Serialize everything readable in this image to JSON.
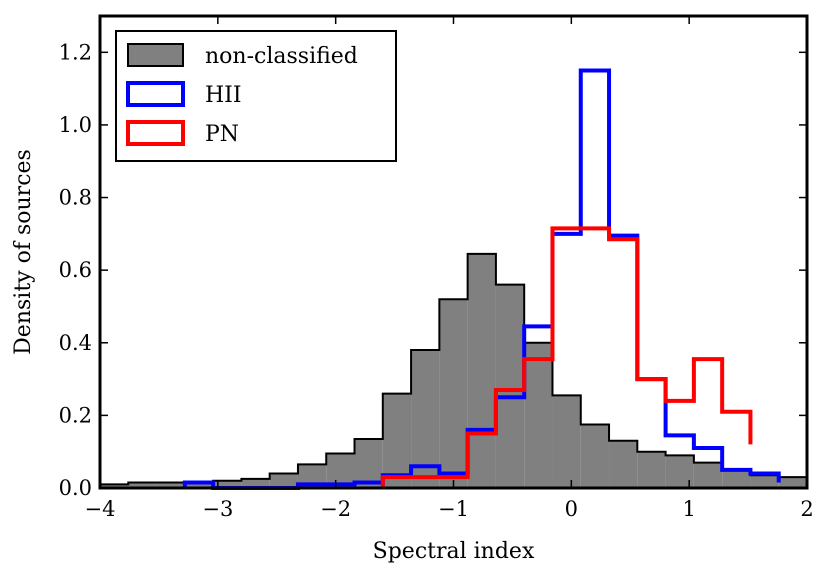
{
  "chart_data": {
    "type": "histogram",
    "xlabel": "Spectral index",
    "ylabel": "Density of sources",
    "xlim": [
      -4,
      2
    ],
    "ylim": [
      0,
      1.3
    ],
    "xticks": [
      -4,
      -3,
      -2,
      -1,
      0,
      1,
      2
    ],
    "xtick_labels": [
      "−4",
      "−3",
      "−2",
      "−1",
      "0",
      "1",
      "2"
    ],
    "yticks": [
      0.0,
      0.2,
      0.4,
      0.6,
      0.8,
      1.0,
      1.2
    ],
    "ytick_labels": [
      "0.0",
      "0.2",
      "0.4",
      "0.6",
      "0.8",
      "1.0",
      "1.2"
    ],
    "legend_position": "top-left",
    "series": [
      {
        "name": "non-classified",
        "style": "filled",
        "fill": "#808080",
        "edge": "#000000",
        "bin_edges": [
          -4.0,
          -3.76,
          -3.52,
          -3.28,
          -3.04,
          -2.8,
          -2.56,
          -2.32,
          -2.08,
          -1.84,
          -1.6,
          -1.36,
          -1.12,
          -0.88,
          -0.64,
          -0.4,
          -0.16,
          0.08,
          0.32,
          0.56,
          0.8,
          1.04,
          1.28,
          1.52,
          1.76,
          2.0
        ],
        "values": [
          0.01,
          0.015,
          0.015,
          0.015,
          0.02,
          0.025,
          0.04,
          0.065,
          0.095,
          0.135,
          0.26,
          0.38,
          0.52,
          0.645,
          0.56,
          0.4,
          0.255,
          0.175,
          0.13,
          0.1,
          0.09,
          0.07,
          0.05,
          0.035,
          0.03
        ]
      },
      {
        "name": "HII",
        "style": "step",
        "color": "#0000ff",
        "bin_edges": [
          -3.28,
          -3.04,
          -2.32,
          -2.08,
          -1.84,
          -1.6,
          -1.36,
          -1.12,
          -0.88,
          -0.64,
          -0.4,
          -0.16,
          0.08,
          0.32,
          0.56,
          0.8,
          1.04,
          1.28,
          1.52,
          1.76
        ],
        "values": [
          0.015,
          0.0,
          0.01,
          0.01,
          0.015,
          0.035,
          0.06,
          0.04,
          0.16,
          0.25,
          0.445,
          0.7,
          1.15,
          0.695,
          0.3,
          0.145,
          0.11,
          0.05,
          0.04,
          0.015
        ]
      },
      {
        "name": "PN",
        "style": "step",
        "color": "#ff0000",
        "bin_edges": [
          -1.6,
          -1.36,
          -1.12,
          -0.88,
          -0.64,
          -0.4,
          -0.16,
          0.08,
          0.32,
          0.56,
          0.8,
          1.04,
          1.28,
          1.52
        ],
        "values": [
          0.03,
          0.03,
          0.03,
          0.15,
          0.27,
          0.355,
          0.715,
          0.715,
          0.685,
          0.3,
          0.24,
          0.355,
          0.21,
          0.12
        ]
      }
    ]
  }
}
